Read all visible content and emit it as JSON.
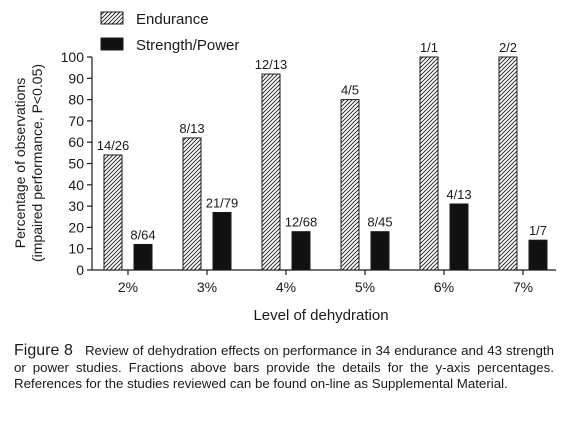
{
  "chart_data": {
    "type": "bar",
    "categories": [
      "2%",
      "3%",
      "4%",
      "5%",
      "6%",
      "7%"
    ],
    "series": [
      {
        "name": "Endurance",
        "pattern": "hatched",
        "values": [
          54,
          62,
          92,
          80,
          100,
          100
        ],
        "labels": [
          "14/26",
          "8/13",
          "12/13",
          "4/5",
          "1/1",
          "2/2"
        ]
      },
      {
        "name": "Strength/Power",
        "color": "#111111",
        "values": [
          12,
          27,
          18,
          18,
          31,
          14
        ],
        "labels": [
          "8/64",
          "21/79",
          "12/68",
          "8/45",
          "4/13",
          "1/7"
        ]
      }
    ],
    "xlabel": "Level of dehydration",
    "ylabel_lines": [
      "Percentage of observations",
      "(impaired performance, P<0.05)"
    ],
    "ylim": [
      0,
      100
    ],
    "yticks": [
      0,
      10,
      20,
      30,
      40,
      50,
      60,
      70,
      80,
      90,
      100
    ],
    "grid": false,
    "legend_position": "top-left"
  },
  "caption": {
    "label": "Figure 8",
    "text": "Review of dehydration effects on performance in 34 endurance and 43 strength or power studies. Fractions above bars provide the details for the y-axis percentages. References for the studies reviewed can be found on-line as Supplemental Material."
  }
}
